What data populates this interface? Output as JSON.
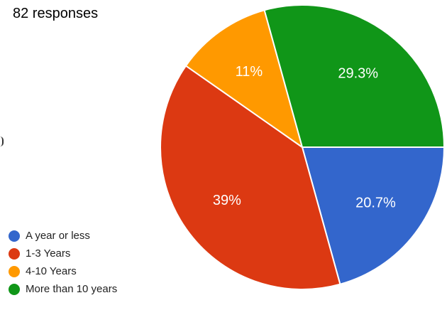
{
  "header": {
    "responses_text": "82 responses"
  },
  "chart_data": {
    "type": "pie",
    "start_angle_deg": 0,
    "direction": "clockwise",
    "slices": [
      {
        "label": "A year or less",
        "value": 20.7,
        "value_label": "20.7%",
        "color": "#3366cc"
      },
      {
        "label": "1-3 Years",
        "value": 39.0,
        "value_label": "39%",
        "color": "#dc3912"
      },
      {
        "label": "4-10 Years",
        "value": 11.0,
        "value_label": "11%",
        "color": "#ff9900"
      },
      {
        "label": "More than 10 years",
        "value": 29.3,
        "value_label": "29.3%",
        "color": "#109618"
      }
    ],
    "legend_position": "bottom-left"
  }
}
